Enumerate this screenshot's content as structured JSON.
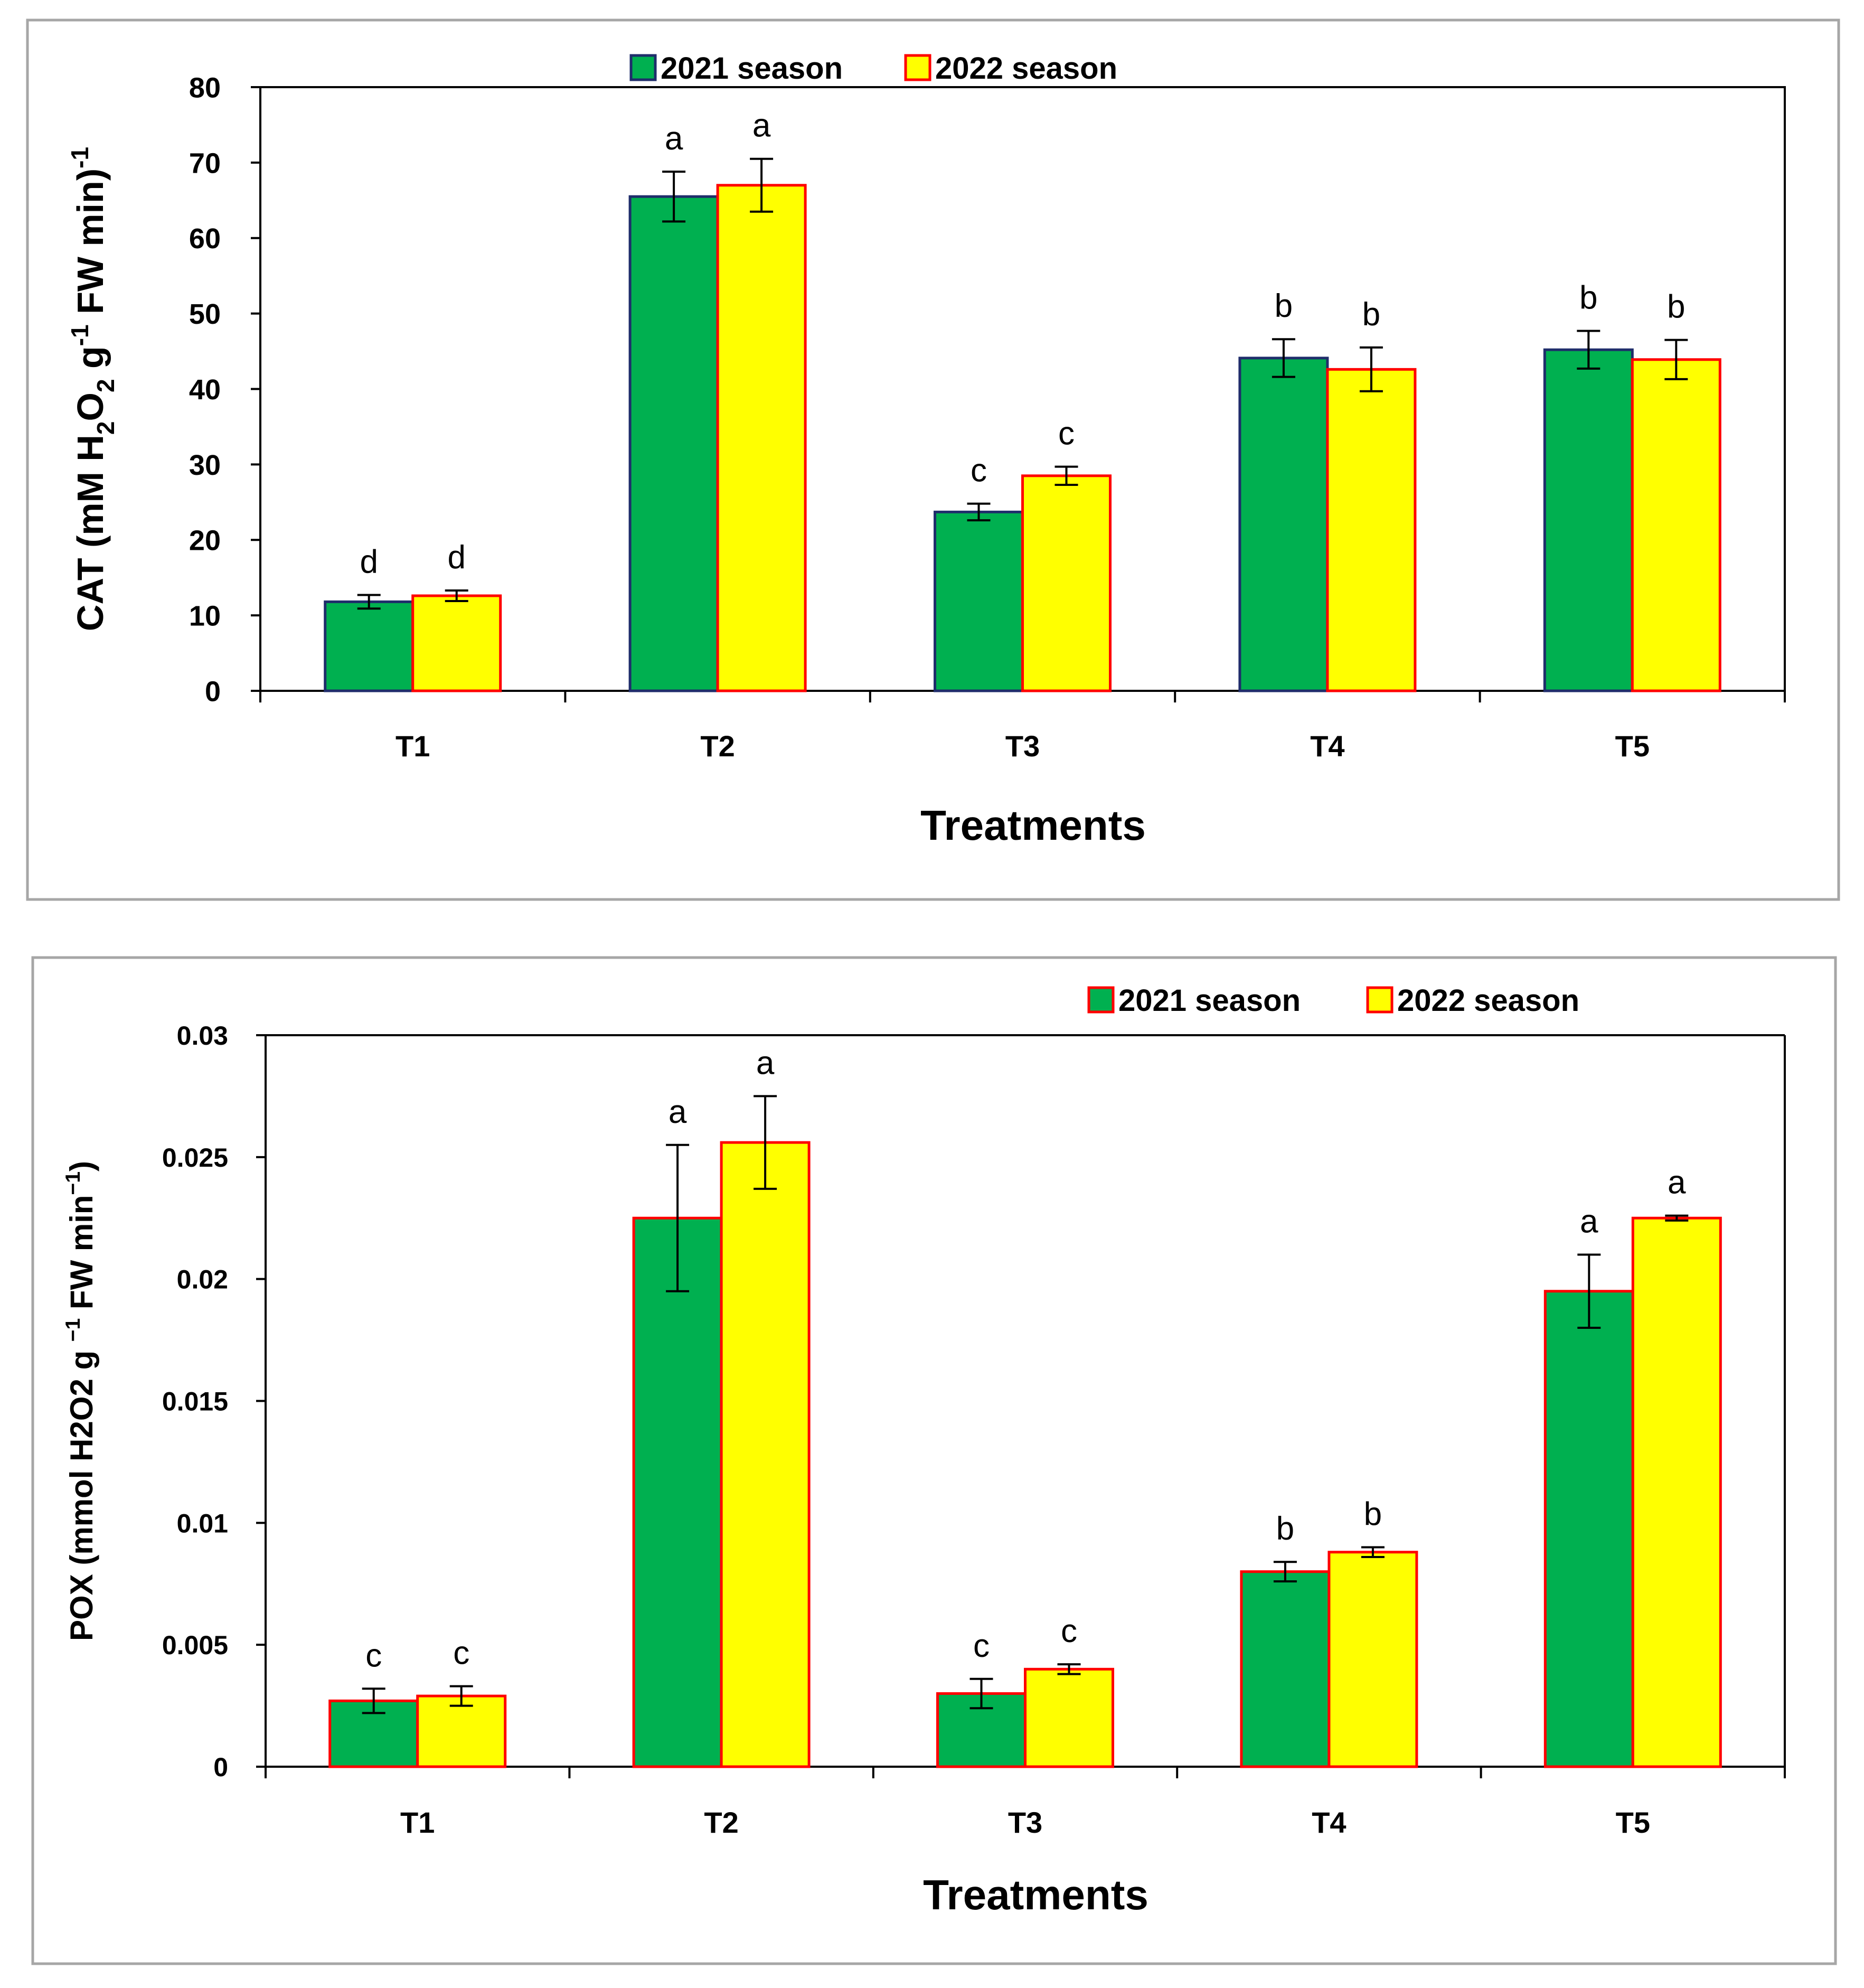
{
  "chart_data": [
    {
      "type": "bar",
      "title": "",
      "xlabel": "Treatments",
      "ylabel": "CAT (mM H2O2 g-1 FW min)-1",
      "ylabel_parts": {
        "pre": "CAT (mM H",
        "sub1": "2",
        "mid1": "O",
        "sub2": "2",
        "mid2": " g",
        "sup1": "-1",
        "mid3": " FW min)",
        "sup2": "-1"
      },
      "categories": [
        "T1",
        "T2",
        "T3",
        "T4",
        "T5"
      ],
      "ylim": [
        0,
        80
      ],
      "yticks": [
        0,
        10,
        20,
        30,
        40,
        50,
        60,
        70,
        80
      ],
      "ytick_labels": [
        "0",
        "10",
        "20",
        "30",
        "40",
        "50",
        "60",
        "70",
        "80"
      ],
      "legend_position": "top-center",
      "series": [
        {
          "name": "2021 season",
          "fill": "#00B050",
          "stroke": "#1F2D6B",
          "values": [
            11.8,
            65.5,
            23.7,
            44.1,
            45.2
          ],
          "errors": [
            0.9,
            3.3,
            1.1,
            2.5,
            2.5
          ],
          "letters": [
            "d",
            "a",
            "c",
            "b",
            "b"
          ]
        },
        {
          "name": "2022 season",
          "fill": "#FFFF00",
          "stroke": "#FF0000",
          "values": [
            12.6,
            67.0,
            28.5,
            42.6,
            43.9
          ],
          "errors": [
            0.7,
            3.5,
            1.2,
            2.9,
            2.6
          ],
          "letters": [
            "d",
            "a",
            "c",
            "b",
            "b"
          ]
        }
      ]
    },
    {
      "type": "bar",
      "title": "",
      "xlabel": "Treatments",
      "ylabel": "POX (mmol H2O2 g −1 FW min−1)",
      "ylabel_parts": {
        "pre": "POX (mmol H2O2 g ",
        "sup1": "−1",
        "mid": " FW min",
        "sup2": "−1",
        "post": ")"
      },
      "categories": [
        "T1",
        "T2",
        "T3",
        "T4",
        "T5"
      ],
      "ylim": [
        0,
        0.03
      ],
      "yticks": [
        0,
        0.005,
        0.01,
        0.015,
        0.02,
        0.025,
        0.03
      ],
      "ytick_labels": [
        "0",
        "0.005",
        "0.01",
        "0.015",
        "0.02",
        "0.025",
        "0.03"
      ],
      "legend_position": "top-right",
      "series": [
        {
          "name": "2021 season",
          "fill": "#00B050",
          "stroke": "#FF0000",
          "values": [
            0.0027,
            0.0225,
            0.003,
            0.008,
            0.0195
          ],
          "errors": [
            0.0005,
            0.003,
            0.0006,
            0.0004,
            0.0015
          ],
          "letters": [
            "c",
            "a",
            "c",
            "b",
            "a"
          ]
        },
        {
          "name": "2022 season",
          "fill": "#FFFF00",
          "stroke": "#FF0000",
          "values": [
            0.0029,
            0.0256,
            0.004,
            0.0088,
            0.0225
          ],
          "errors": [
            0.0004,
            0.0019,
            0.0002,
            0.0002,
            0.0001
          ],
          "letters": [
            "c",
            "a",
            "c",
            "b",
            "a"
          ]
        }
      ]
    }
  ]
}
